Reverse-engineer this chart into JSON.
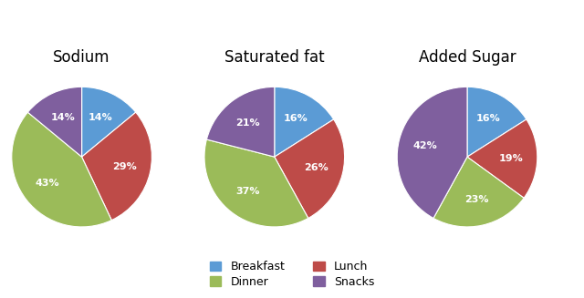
{
  "charts": [
    {
      "title": "Sodium",
      "values": [
        14,
        29,
        43,
        14
      ],
      "labels": [
        "14%",
        "29%",
        "43%",
        "14%"
      ],
      "startangle": 90
    },
    {
      "title": "Saturated fat",
      "values": [
        16,
        26,
        37,
        21
      ],
      "labels": [
        "16%",
        "26%",
        "37%",
        "21%"
      ],
      "startangle": 90
    },
    {
      "title": "Added Sugar",
      "values": [
        16,
        19,
        23,
        42
      ],
      "labels": [
        "16%",
        "19%",
        "23%",
        "42%"
      ],
      "startangle": 90
    }
  ],
  "colors": [
    "#5B9BD5",
    "#BE4B48",
    "#9BBB59",
    "#7F5F9E"
  ],
  "legend_labels": [
    "Breakfast",
    "Lunch",
    "Dinner",
    "Snacks"
  ],
  "legend_colors": [
    "#5B9BD5",
    "#BE4B48",
    "#9BBB59",
    "#7F5F9E"
  ],
  "text_color": "#FFFFFF",
  "text_fontsize": 8,
  "title_fontsize": 12,
  "background_color": "#FFFFFF"
}
